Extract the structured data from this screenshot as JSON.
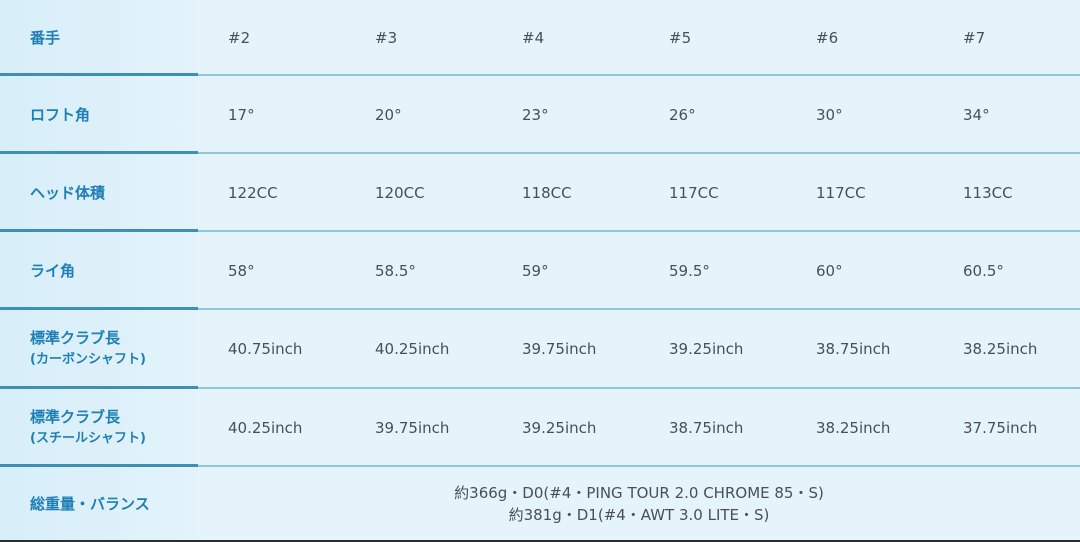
{
  "rows": [
    {
      "label": "番手",
      "sub": "",
      "values": [
        "#2",
        "#3",
        "#4",
        "#5",
        "#6",
        "#7"
      ]
    },
    {
      "label": "ロフト角",
      "sub": "",
      "values": [
        "17°",
        "20°",
        "23°",
        "26°",
        "30°",
        "34°"
      ]
    },
    {
      "label": "ヘッド体積",
      "sub": "",
      "values": [
        "122CC",
        "120CC",
        "118CC",
        "117CC",
        "117CC",
        "113CC"
      ]
    },
    {
      "label": "ライ角",
      "sub": "",
      "values": [
        "58°",
        "58.5°",
        "59°",
        "59.5°",
        "60°",
        "60.5°"
      ]
    },
    {
      "label": "標準クラブ長",
      "sub": "(カーボンシャフト)",
      "values": [
        "40.75inch",
        "40.25inch",
        "39.75inch",
        "39.25inch",
        "38.75inch",
        "38.25inch"
      ]
    },
    {
      "label": "標準クラブ長",
      "sub": "(スチールシャフト)",
      "values": [
        "40.25inch",
        "39.75inch",
        "39.25inch",
        "38.75inch",
        "38.25inch",
        "37.75inch"
      ]
    }
  ],
  "weight": {
    "label": "総重量・バランス",
    "line1": "約366g・D0(#4・PING TOUR 2.0 CHROME 85・S)",
    "line2": "約381g・D1(#4・AWT 3.0 LITE・S)"
  },
  "colors": {
    "label_text": "#1f7fb5",
    "background": "#e5f4fb",
    "divider": "#3f8fb3"
  }
}
